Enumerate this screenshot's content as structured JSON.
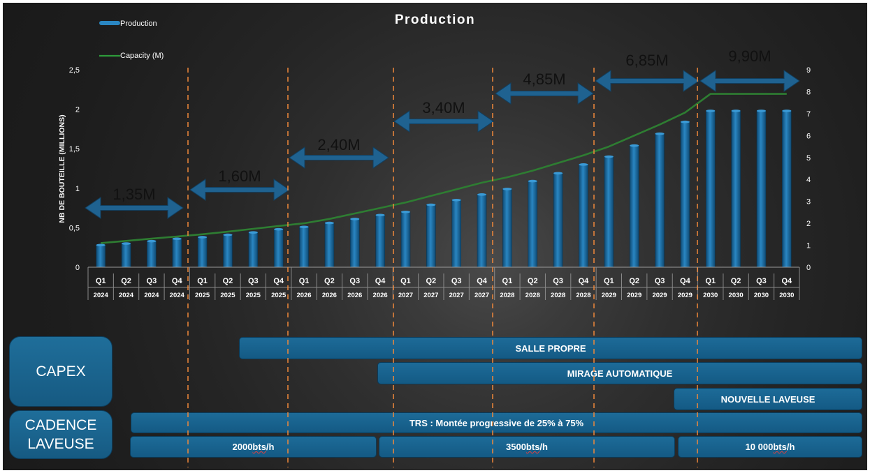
{
  "chart_data": {
    "type": "bar",
    "title": "Production",
    "ylabel": "NB DE BOUTEILLE (MILLIONS)",
    "ylim": [
      0,
      2.5
    ],
    "y_ticks": [
      "0",
      "0,5",
      "1",
      "1,5",
      "2",
      "2,5"
    ],
    "y2lim": [
      0,
      9
    ],
    "y2_ticks": [
      "0",
      "1",
      "2",
      "3",
      "4",
      "5",
      "6",
      "7",
      "8",
      "9"
    ],
    "legend": {
      "placement": "top-left",
      "entries": [
        "Production",
        "Capacity (M)"
      ]
    },
    "quarters": [
      "Q1",
      "Q2",
      "Q3",
      "Q4",
      "Q1",
      "Q2",
      "Q3",
      "Q4",
      "Q1",
      "Q2",
      "Q3",
      "Q4",
      "Q1",
      "Q2",
      "Q3",
      "Q4",
      "Q1",
      "Q2",
      "Q3",
      "Q4",
      "Q1",
      "Q2",
      "Q3",
      "Q4",
      "Q1",
      "Q2",
      "Q3",
      "Q4"
    ],
    "years": [
      "2024",
      "2024",
      "2024",
      "2024",
      "2025",
      "2025",
      "2025",
      "2025",
      "2026",
      "2026",
      "2026",
      "2026",
      "2027",
      "2027",
      "2027",
      "2027",
      "2028",
      "2028",
      "2028",
      "2028",
      "2029",
      "2029",
      "2029",
      "2029",
      "2030",
      "2030",
      "2030",
      "2030"
    ],
    "series": [
      {
        "name": "Production",
        "type": "bar",
        "axis": "left",
        "color": "#1f6fa5",
        "values": [
          0.28,
          0.3,
          0.33,
          0.36,
          0.38,
          0.41,
          0.44,
          0.48,
          0.51,
          0.56,
          0.61,
          0.66,
          0.7,
          0.79,
          0.85,
          0.92,
          0.99,
          1.09,
          1.19,
          1.3,
          1.4,
          1.54,
          1.69,
          1.84,
          1.98,
          1.98,
          1.98,
          1.98
        ]
      },
      {
        "name": "Capacity (M)",
        "type": "line",
        "axis": "right",
        "color": "#2e7d32",
        "values": [
          1.1,
          1.2,
          1.3,
          1.4,
          1.5,
          1.62,
          1.75,
          1.88,
          2.0,
          2.2,
          2.45,
          2.7,
          2.95,
          3.25,
          3.55,
          3.85,
          4.1,
          4.4,
          4.75,
          5.1,
          5.5,
          6.0,
          6.5,
          7.05,
          7.9,
          7.9,
          7.9,
          7.9
        ]
      }
    ],
    "annotations": [
      {
        "text": "1,35M",
        "from_q": 0,
        "to_q": 4
      },
      {
        "text": "1,60M",
        "from_q": 4,
        "to_q": 8
      },
      {
        "text": "2,40M",
        "from_q": 8,
        "to_q": 12
      },
      {
        "text": "3,40M",
        "from_q": 12,
        "to_q": 16
      },
      {
        "text": "4,85M",
        "from_q": 16,
        "to_q": 20
      },
      {
        "text": "6,85M",
        "from_q": 20,
        "to_q": 24
      },
      {
        "text": "9,90M",
        "from_q": 24,
        "to_q": 28
      }
    ]
  },
  "capex": {
    "label": "CAPEX",
    "items": [
      {
        "label": "SALLE PROPRE"
      },
      {
        "label": "MIRAGE AUTOMATIQUE"
      },
      {
        "label": "NOUVELLE LAVEUSE"
      }
    ]
  },
  "cadence": {
    "label_line1": "CADENCE",
    "label_line2": "LAVEUSE",
    "trs": "TRS : Montée progressive de 25% à 75%",
    "rates": [
      {
        "value": "2000 ",
        "unit": "bts",
        "suffix": "/h"
      },
      {
        "value": "3500 ",
        "unit": "bts",
        "suffix": "/h"
      },
      {
        "value": "10 000 ",
        "unit": "bts",
        "suffix": "/h"
      }
    ]
  },
  "colors": {
    "bar_fill": "#1f6fa5",
    "capacity_line": "#2e7d32",
    "arrow": "#1f6290",
    "year_divider": "#f0883a"
  }
}
